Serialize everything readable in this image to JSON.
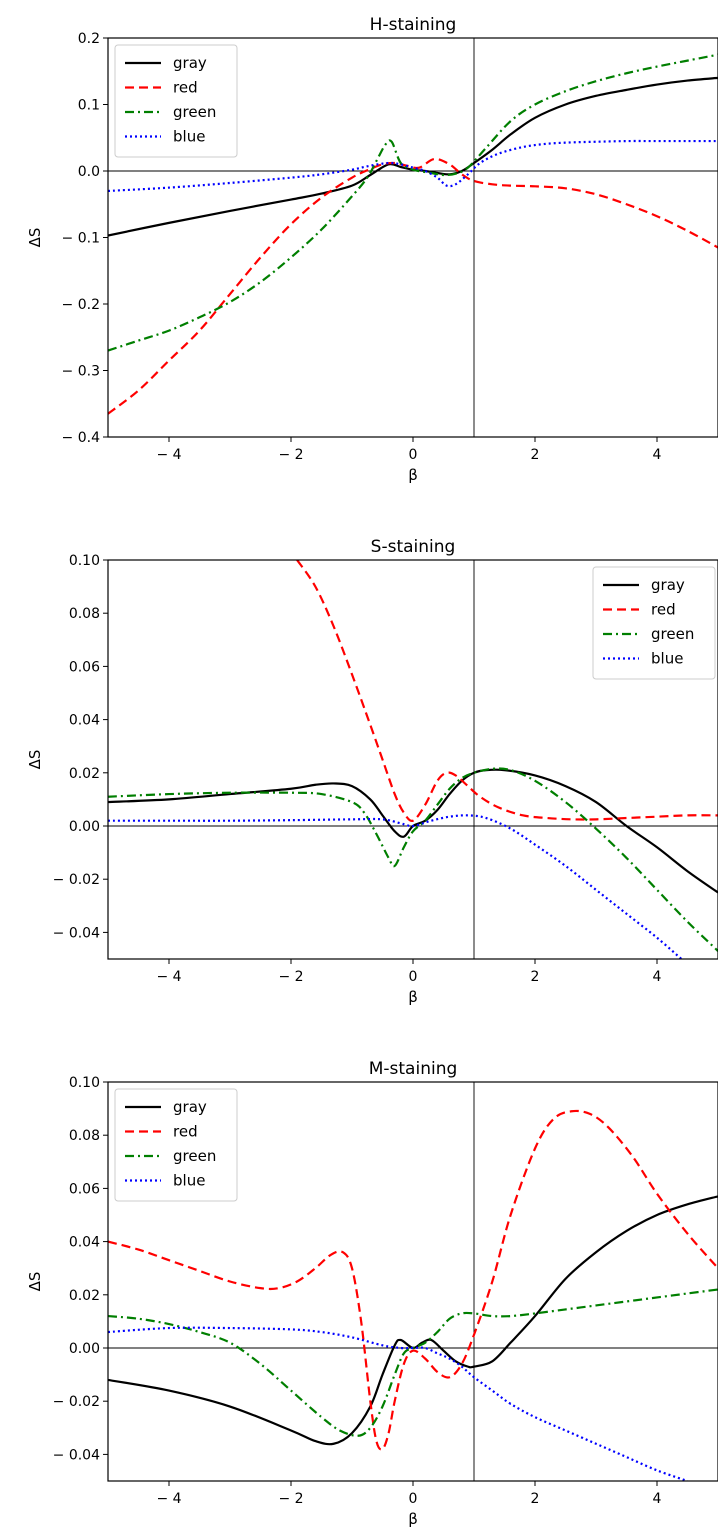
{
  "chart_data": [
    {
      "type": "line",
      "title": "H-staining",
      "xlabel": "β",
      "ylabel": "ΔS",
      "xlim": [
        -5,
        5
      ],
      "ylim": [
        -0.4,
        0.2
      ],
      "xticks": [
        -4,
        -2,
        0,
        2,
        4
      ],
      "xtick_labels": [
        "− 4",
        "− 2",
        "0",
        "2",
        "4"
      ],
      "yticks": [
        -0.4,
        -0.3,
        -0.2,
        -0.1,
        0.0,
        0.1,
        0.2
      ],
      "ytick_labels": [
        "− 0.4",
        "− 0.3",
        "− 0.2",
        "− 0.1",
        "0.0",
        "0.1",
        "0.2"
      ],
      "hline": 0,
      "vline": 1,
      "legend": "top-left",
      "series": [
        {
          "name": "gray",
          "color": "#000000",
          "style": "solid",
          "x": [
            -5,
            -4,
            -3,
            -2,
            -1.5,
            -1,
            -0.7,
            -0.4,
            -0.2,
            0,
            0.2,
            0.4,
            0.6,
            0.8,
            1,
            1.3,
            1.6,
            2,
            2.5,
            3,
            3.5,
            4,
            4.5,
            5
          ],
          "y": [
            -0.097,
            -0.078,
            -0.06,
            -0.043,
            -0.034,
            -0.022,
            -0.006,
            0.01,
            0.006,
            0.002,
            0.0,
            -0.003,
            -0.005,
            0.0,
            0.012,
            0.032,
            0.055,
            0.08,
            0.1,
            0.113,
            0.122,
            0.13,
            0.136,
            0.14
          ]
        },
        {
          "name": "red",
          "color": "#ff0000",
          "style": "dashed",
          "x": [
            -5,
            -4.5,
            -4,
            -3.5,
            -3,
            -2.5,
            -2,
            -1.5,
            -1,
            -0.7,
            -0.5,
            -0.3,
            -0.1,
            0.1,
            0.35,
            0.6,
            0.8,
            1,
            1.3,
            1.6,
            2,
            2.5,
            3,
            3.5,
            4,
            4.5,
            5
          ],
          "y": [
            -0.365,
            -0.33,
            -0.285,
            -0.24,
            -0.185,
            -0.13,
            -0.08,
            -0.04,
            -0.01,
            0.003,
            0.01,
            0.012,
            0.008,
            0.005,
            0.018,
            0.01,
            -0.005,
            -0.015,
            -0.02,
            -0.022,
            -0.023,
            -0.026,
            -0.035,
            -0.05,
            -0.068,
            -0.09,
            -0.115
          ]
        },
        {
          "name": "green",
          "color": "#007f00",
          "style": "dashdot",
          "x": [
            -5,
            -4.5,
            -4,
            -3.5,
            -3,
            -2.5,
            -2,
            -1.5,
            -1,
            -0.75,
            -0.6,
            -0.45,
            -0.35,
            -0.2,
            0,
            0.3,
            0.5,
            0.7,
            0.9,
            1.2,
            1.6,
            2,
            2.5,
            3,
            3.5,
            4,
            4.5,
            5
          ],
          "y": [
            -0.27,
            -0.255,
            -0.24,
            -0.22,
            -0.197,
            -0.167,
            -0.13,
            -0.088,
            -0.038,
            -0.01,
            0.015,
            0.04,
            0.044,
            0.012,
            0.002,
            -0.003,
            -0.006,
            -0.004,
            0.005,
            0.035,
            0.075,
            0.1,
            0.12,
            0.135,
            0.147,
            0.157,
            0.166,
            0.175
          ]
        },
        {
          "name": "blue",
          "color": "#0000ff",
          "style": "dotted",
          "x": [
            -5,
            -4,
            -3,
            -2,
            -1.5,
            -1,
            -0.7,
            -0.4,
            -0.2,
            0,
            0.2,
            0.4,
            0.55,
            0.7,
            0.9,
            1.1,
            1.4,
            1.8,
            2.2,
            2.6,
            3,
            3.5,
            4,
            4.5,
            5
          ],
          "y": [
            -0.03,
            -0.025,
            -0.018,
            -0.01,
            -0.005,
            0.002,
            0.008,
            0.012,
            0.01,
            0.005,
            0.0,
            -0.01,
            -0.022,
            -0.02,
            -0.005,
            0.012,
            0.026,
            0.036,
            0.041,
            0.043,
            0.044,
            0.045,
            0.045,
            0.045,
            0.045
          ]
        }
      ]
    },
    {
      "type": "line",
      "title": "S-staining",
      "xlabel": "β",
      "ylabel": "ΔS",
      "xlim": [
        -5,
        5
      ],
      "ylim": [
        -0.05,
        0.1
      ],
      "xticks": [
        -4,
        -2,
        0,
        2,
        4
      ],
      "xtick_labels": [
        "− 4",
        "− 2",
        "0",
        "2",
        "4"
      ],
      "yticks": [
        -0.04,
        -0.02,
        0.0,
        0.02,
        0.04,
        0.06,
        0.08,
        0.1
      ],
      "ytick_labels": [
        "− 0.04",
        "− 0.02",
        "0.00",
        "0.02",
        "0.04",
        "0.06",
        "0.08",
        "0.10"
      ],
      "hline": 0,
      "vline": 1,
      "legend": "top-right",
      "series": [
        {
          "name": "gray",
          "color": "#000000",
          "style": "solid",
          "x": [
            -5,
            -4,
            -3,
            -2,
            -1.6,
            -1.3,
            -1,
            -0.7,
            -0.5,
            -0.3,
            -0.15,
            0,
            0.2,
            0.4,
            0.6,
            0.8,
            1,
            1.2,
            1.5,
            2,
            2.5,
            3,
            3.5,
            4,
            4.5,
            5
          ],
          "y": [
            0.009,
            0.01,
            0.012,
            0.014,
            0.0155,
            0.016,
            0.015,
            0.01,
            0.004,
            -0.002,
            -0.004,
            0.0,
            0.002,
            0.006,
            0.012,
            0.017,
            0.02,
            0.021,
            0.021,
            0.019,
            0.015,
            0.009,
            0.0,
            -0.008,
            -0.017,
            -0.025
          ]
        },
        {
          "name": "red",
          "color": "#ff0000",
          "style": "dashed",
          "x": [
            -1.9,
            -1.6,
            -1.3,
            -1,
            -0.7,
            -0.5,
            -0.3,
            -0.15,
            0,
            0.2,
            0.4,
            0.55,
            0.7,
            0.9,
            1.1,
            1.4,
            1.8,
            2.2,
            2.6,
            3,
            3.5,
            4,
            4.5,
            5
          ],
          "y": [
            0.1,
            0.09,
            0.075,
            0.057,
            0.038,
            0.025,
            0.012,
            0.005,
            0.002,
            0.008,
            0.017,
            0.02,
            0.019,
            0.015,
            0.011,
            0.007,
            0.004,
            0.003,
            0.0025,
            0.0025,
            0.003,
            0.0035,
            0.004,
            0.004
          ]
        },
        {
          "name": "green",
          "color": "#007f00",
          "style": "dashdot",
          "x": [
            -5,
            -4,
            -3,
            -2,
            -1.5,
            -1,
            -0.8,
            -0.6,
            -0.4,
            -0.3,
            -0.15,
            0,
            0.2,
            0.4,
            0.6,
            0.8,
            1,
            1.3,
            1.6,
            2,
            2.5,
            3,
            3.5,
            4,
            4.5,
            5
          ],
          "y": [
            0.011,
            0.012,
            0.0125,
            0.0125,
            0.012,
            0.009,
            0.005,
            -0.003,
            -0.012,
            -0.015,
            -0.008,
            -0.002,
            0.002,
            0.008,
            0.014,
            0.018,
            0.02,
            0.0215,
            0.021,
            0.017,
            0.009,
            -0.001,
            -0.012,
            -0.024,
            -0.036,
            -0.047
          ]
        },
        {
          "name": "blue",
          "color": "#0000ff",
          "style": "dotted",
          "x": [
            -5,
            -4,
            -3,
            -2,
            -1,
            -0.5,
            -0.2,
            0,
            0.3,
            0.6,
            0.9,
            1.2,
            1.6,
            2,
            2.5,
            3,
            3.5,
            4,
            4.4
          ],
          "y": [
            0.002,
            0.002,
            0.002,
            0.0022,
            0.0025,
            0.0025,
            0.001,
            0.0,
            0.002,
            0.0035,
            0.004,
            0.003,
            -0.001,
            -0.007,
            -0.015,
            -0.024,
            -0.033,
            -0.042,
            -0.05
          ]
        }
      ]
    },
    {
      "type": "line",
      "title": "M-staining",
      "xlabel": "β",
      "ylabel": "ΔS",
      "xlim": [
        -5,
        5
      ],
      "ylim": [
        -0.05,
        0.1
      ],
      "xticks": [
        -4,
        -2,
        0,
        2,
        4
      ],
      "xtick_labels": [
        "− 4",
        "− 2",
        "0",
        "2",
        "4"
      ],
      "yticks": [
        -0.04,
        -0.02,
        0.0,
        0.02,
        0.04,
        0.06,
        0.08,
        0.1
      ],
      "ytick_labels": [
        "− 0.04",
        "− 0.02",
        "0.00",
        "0.02",
        "0.04",
        "0.06",
        "0.08",
        "0.10"
      ],
      "hline": 0,
      "vline": 1,
      "legend": "top-left",
      "series": [
        {
          "name": "gray",
          "color": "#000000",
          "style": "solid",
          "x": [
            -5,
            -4,
            -3,
            -2,
            -1.6,
            -1.3,
            -1,
            -0.7,
            -0.5,
            -0.3,
            -0.2,
            0,
            0.15,
            0.3,
            0.5,
            0.7,
            0.9,
            1,
            1.3,
            1.6,
            2,
            2.5,
            3,
            3.5,
            4,
            4.5,
            5
          ],
          "y": [
            -0.012,
            -0.016,
            -0.022,
            -0.031,
            -0.035,
            -0.036,
            -0.032,
            -0.022,
            -0.01,
            0.001,
            0.003,
            0.0,
            0.002,
            0.003,
            -0.001,
            -0.005,
            -0.007,
            -0.007,
            -0.005,
            0.002,
            0.012,
            0.026,
            0.036,
            0.044,
            0.05,
            0.054,
            0.057
          ]
        },
        {
          "name": "red",
          "color": "#ff0000",
          "style": "dashed",
          "x": [
            -5,
            -4.5,
            -4,
            -3.5,
            -3,
            -2.5,
            -2.2,
            -1.9,
            -1.6,
            -1.35,
            -1.15,
            -1,
            -0.85,
            -0.7,
            -0.6,
            -0.5,
            -0.4,
            -0.3,
            -0.15,
            0,
            0.2,
            0.4,
            0.6,
            0.8,
            1,
            1.3,
            1.6,
            2,
            2.3,
            2.6,
            2.9,
            3.2,
            3.6,
            4,
            4.5,
            5
          ],
          "y": [
            0.04,
            0.037,
            0.033,
            0.029,
            0.025,
            0.0225,
            0.0225,
            0.025,
            0.03,
            0.035,
            0.036,
            0.03,
            0.01,
            -0.02,
            -0.035,
            -0.038,
            -0.032,
            -0.02,
            -0.006,
            -0.001,
            -0.004,
            -0.009,
            -0.011,
            -0.006,
            0.005,
            0.025,
            0.05,
            0.075,
            0.086,
            0.089,
            0.088,
            0.083,
            0.072,
            0.058,
            0.043,
            0.03
          ]
        },
        {
          "name": "green",
          "color": "#007f00",
          "style": "dashdot",
          "x": [
            -5,
            -4.5,
            -4,
            -3.5,
            -3,
            -2.5,
            -2,
            -1.5,
            -1.2,
            -0.9,
            -0.7,
            -0.5,
            -0.3,
            -0.15,
            0,
            0.2,
            0.4,
            0.6,
            0.8,
            1,
            1.3,
            1.6,
            2,
            2.5,
            3,
            3.5,
            4,
            4.5,
            5
          ],
          "y": [
            0.012,
            0.011,
            0.009,
            0.006,
            0.002,
            -0.006,
            -0.016,
            -0.026,
            -0.031,
            -0.033,
            -0.03,
            -0.022,
            -0.01,
            -0.002,
            0.0,
            0.002,
            0.006,
            0.011,
            0.013,
            0.013,
            0.012,
            0.012,
            0.013,
            0.0145,
            0.016,
            0.0175,
            0.019,
            0.0205,
            0.022
          ]
        },
        {
          "name": "blue",
          "color": "#0000ff",
          "style": "dotted",
          "x": [
            -5,
            -4,
            -3,
            -2,
            -1.5,
            -1,
            -0.5,
            -0.2,
            0,
            0.2,
            0.4,
            0.6,
            0.8,
            1,
            1.3,
            1.6,
            2,
            2.5,
            3,
            3.5,
            4,
            4.5
          ],
          "y": [
            0.006,
            0.0075,
            0.0075,
            0.007,
            0.006,
            0.004,
            0.001,
            0.0,
            0.0,
            0.0,
            -0.002,
            -0.004,
            -0.007,
            -0.011,
            -0.016,
            -0.021,
            -0.026,
            -0.031,
            -0.036,
            -0.041,
            -0.046,
            -0.05
          ]
        }
      ]
    }
  ]
}
